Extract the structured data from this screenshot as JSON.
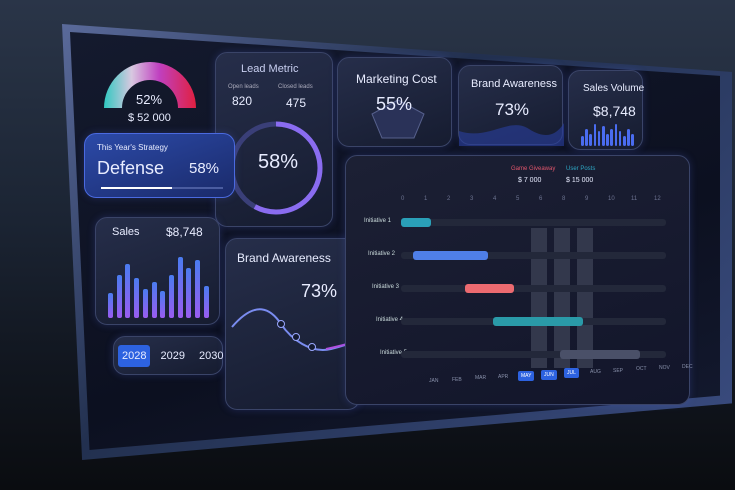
{
  "gauge": {
    "percent": "52%",
    "amount": "$ 52 000",
    "value": 0.52
  },
  "lead_metric": {
    "title": "Lead Metric",
    "open_label": "Open leads",
    "open_value": "820",
    "closed_label": "Closed leads",
    "closed_value": "475",
    "ring_percent": "58%",
    "ring_value": 0.58
  },
  "marketing_cost": {
    "title": "Marketing Cost",
    "value": "55%"
  },
  "brand_awareness_top": {
    "title": "Brand Awareness",
    "value": "73%"
  },
  "sales_volume": {
    "title": "Sales Volume",
    "value": "$8,748"
  },
  "strategy": {
    "label": "This Year's Strategy",
    "name": "Defense",
    "value": "58%",
    "progress": 0.58
  },
  "sales": {
    "title": "Sales",
    "value": "$8,748",
    "bars": [
      0.35,
      0.6,
      0.75,
      0.55,
      0.4,
      0.5,
      0.38,
      0.6,
      0.85,
      0.7,
      0.8,
      0.45
    ]
  },
  "brand_awareness": {
    "title": "Brand Awareness",
    "value": "73%"
  },
  "years": {
    "items": [
      "2028",
      "2029",
      "2030"
    ],
    "selected": "2028"
  },
  "gantt": {
    "legend": [
      {
        "label": "Game Giveaway",
        "amount": "$ 7 000",
        "color": "#e0566c"
      },
      {
        "label": "User Posts",
        "amount": "$ 15 000",
        "color": "#2ea6c4"
      }
    ],
    "ticks": [
      "0",
      "1",
      "2",
      "3",
      "4",
      "5",
      "6",
      "8",
      "9",
      "10",
      "11",
      "12"
    ],
    "initiatives": [
      {
        "label": "Initiative 1",
        "start": 0,
        "end": 1.3,
        "color": "#2aa0b8"
      },
      {
        "label": "Initiative 2",
        "start": 0.5,
        "end": 3.8,
        "color": "#4f7fe8"
      },
      {
        "label": "Initiative 3",
        "start": 2.8,
        "end": 4.9,
        "color": "#ec6a70"
      },
      {
        "label": "Initiative 4",
        "start": 4.0,
        "end": 7.9,
        "color": "#2a9aa8"
      },
      {
        "label": "Initiative 5",
        "start": 6.9,
        "end": 10.4,
        "color": "#4a5068"
      }
    ],
    "months": [
      "JAN",
      "FEB",
      "MAR",
      "APR",
      "MAY",
      "JUN",
      "JUL",
      "AUG",
      "SEP",
      "OCT",
      "NOV",
      "DEC"
    ],
    "highlighted_months": [
      "MAY",
      "JUN",
      "JUL"
    ]
  },
  "colors": {
    "accent": "#2d62e0",
    "purple": "#8a6cf0"
  }
}
